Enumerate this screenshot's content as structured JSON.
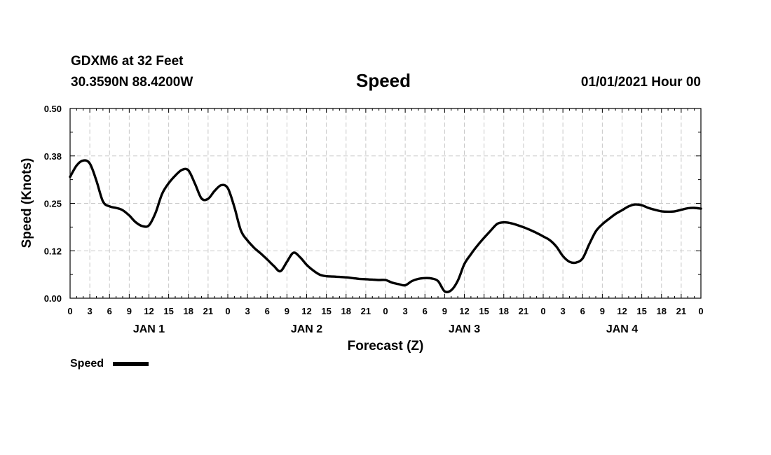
{
  "header": {
    "station": "GDXM6 at 32 Feet",
    "coords": "30.3590N 88.4200W",
    "title": "Speed",
    "date": "01/01/2021 Hour 00"
  },
  "chart_data": {
    "type": "line",
    "title": "Speed",
    "xlabel": "Forecast (Z)",
    "ylabel": "Speed (Knots)",
    "x_unit": "forecast hour",
    "xlim": [
      0,
      96
    ],
    "ylim": [
      0,
      0.5
    ],
    "y_ticks": [
      "0.00",
      "0.12",
      "0.25",
      "0.38",
      "0.50"
    ],
    "y_tick_values": [
      0,
      0.125,
      0.25,
      0.375,
      0.5
    ],
    "x_ticks": [
      "0",
      "3",
      "6",
      "9",
      "12",
      "15",
      "18",
      "21",
      "0",
      "3",
      "6",
      "9",
      "12",
      "15",
      "18",
      "21",
      "0",
      "3",
      "6",
      "9",
      "12",
      "15",
      "18",
      "21",
      "0",
      "3",
      "6",
      "9",
      "12",
      "15",
      "18",
      "21",
      "0"
    ],
    "x_tick_hours": [
      0,
      3,
      6,
      9,
      12,
      15,
      18,
      21,
      24,
      27,
      30,
      33,
      36,
      39,
      42,
      45,
      48,
      51,
      54,
      57,
      60,
      63,
      66,
      69,
      72,
      75,
      78,
      81,
      84,
      87,
      90,
      93,
      96
    ],
    "day_labels": [
      {
        "label": "JAN 1",
        "hour": 12
      },
      {
        "label": "JAN 2",
        "hour": 36
      },
      {
        "label": "JAN 3",
        "hour": 60
      },
      {
        "label": "JAN 4",
        "hour": 84
      }
    ],
    "grid": true,
    "legend": "bottom-left",
    "series": [
      {
        "name": "Speed",
        "color": "#000000",
        "x": [
          0,
          1,
          2,
          3,
          4,
          5,
          6,
          7,
          8,
          9,
          10,
          11,
          12,
          13,
          14,
          15,
          16,
          17,
          18,
          19,
          20,
          21,
          22,
          23,
          24,
          25,
          26,
          27,
          28,
          29,
          30,
          31,
          32,
          33,
          34,
          35,
          36,
          37,
          38,
          39,
          40,
          41,
          42,
          43,
          44,
          45,
          46,
          47,
          48,
          49,
          50,
          51,
          52,
          53,
          54,
          55,
          56,
          57,
          58,
          59,
          60,
          61,
          62,
          63,
          64,
          65,
          66,
          67,
          68,
          69,
          70,
          71,
          72,
          73,
          74,
          75,
          76,
          77,
          78,
          79,
          80,
          81,
          82,
          83,
          84,
          85,
          86,
          87,
          88,
          89,
          90,
          91,
          92,
          93,
          94,
          95,
          96
        ],
        "values": [
          0.32,
          0.35,
          0.363,
          0.355,
          0.31,
          0.255,
          0.242,
          0.238,
          0.232,
          0.218,
          0.2,
          0.19,
          0.192,
          0.225,
          0.275,
          0.303,
          0.323,
          0.338,
          0.337,
          0.302,
          0.263,
          0.262,
          0.283,
          0.298,
          0.29,
          0.24,
          0.178,
          0.152,
          0.133,
          0.118,
          0.102,
          0.085,
          0.071,
          0.096,
          0.12,
          0.108,
          0.088,
          0.073,
          0.062,
          0.058,
          0.057,
          0.056,
          0.055,
          0.053,
          0.051,
          0.05,
          0.049,
          0.048,
          0.048,
          0.041,
          0.037,
          0.034,
          0.045,
          0.051,
          0.053,
          0.052,
          0.045,
          0.018,
          0.021,
          0.046,
          0.09,
          0.116,
          0.139,
          0.159,
          0.178,
          0.196,
          0.2,
          0.198,
          0.193,
          0.187,
          0.18,
          0.172,
          0.163,
          0.153,
          0.136,
          0.111,
          0.096,
          0.094,
          0.105,
          0.142,
          0.176,
          0.195,
          0.209,
          0.222,
          0.232,
          0.242,
          0.247,
          0.245,
          0.238,
          0.233,
          0.229,
          0.228,
          0.229,
          0.233,
          0.237,
          0.238,
          0.236
        ]
      }
    ]
  }
}
